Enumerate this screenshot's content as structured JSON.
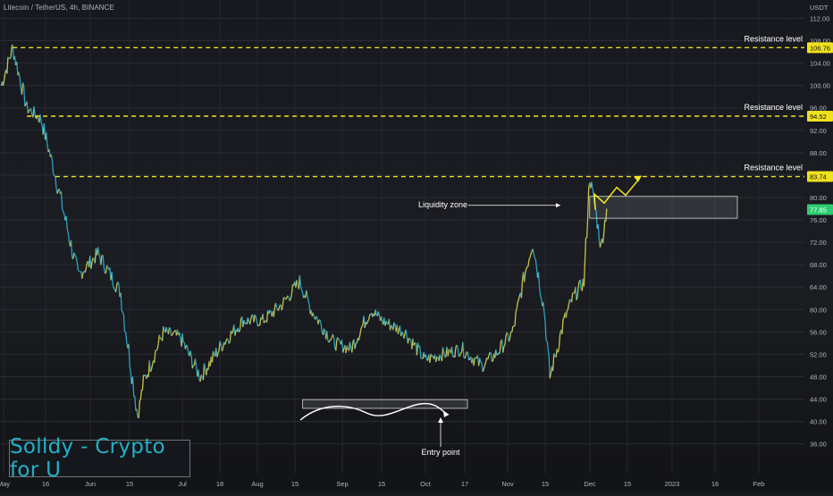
{
  "header": {
    "title": "Litecoin / TetherUS, 4h, BINANCE",
    "currency": "USDT"
  },
  "watermark": {
    "text": "Solldy - Crypto for U"
  },
  "colors": {
    "line_up": "#c8c24a",
    "line_down": "#2ba3bf",
    "resistance": "#f0e11e",
    "arrow": "#f5eb22",
    "annotation": "#ffffff"
  },
  "annotations": {
    "resistance_label": "Resistance level",
    "liquidity_label": "Liquidity zone",
    "entry_label": "Entry point"
  },
  "chart_data": {
    "type": "line",
    "title": "Litecoin / TetherUS, 4h, BINANCE",
    "ylabel": "USDT",
    "ylim": [
      35,
      113
    ],
    "x_tick_labels": [
      "May",
      "16",
      "Jun",
      "15",
      "Jul",
      "18",
      "Aug",
      "15",
      "Sep",
      "15",
      "Oct",
      "17",
      "Nov",
      "15",
      "Dec",
      "15",
      "2023",
      "16",
      "Feb"
    ],
    "y_tick_labels": [
      "112.00",
      "108.00",
      "104.00",
      "100.00",
      "96.00",
      "92.00",
      "88.00",
      "84.00",
      "80.00",
      "76.00",
      "72.00",
      "68.00",
      "64.00",
      "60.00",
      "56.00",
      "52.00",
      "48.00",
      "44.00",
      "40.00",
      "36.00"
    ],
    "price_labels": [
      {
        "value": "106.76",
        "color": "#f0e11e"
      },
      {
        "value": "94.52",
        "color": "#f0e11e"
      },
      {
        "value": "83.74",
        "color": "#f0e11e"
      },
      {
        "value": "77.85",
        "color": "#2ecc71"
      }
    ],
    "resistance_levels": [
      106.76,
      94.52,
      83.74
    ],
    "current_price": 77.85,
    "liquidity_zone": {
      "from": "Nov 24",
      "to": "Dec 30",
      "low": 76.3,
      "high": 80.2
    },
    "accumulation_box": {
      "from": "Aug 15",
      "to": "Oct 19",
      "low": 42.5,
      "high": 43.9
    },
    "series": [
      {
        "name": "LTCUSDT",
        "x": [
          "May 1",
          "May 5",
          "May 10",
          "May 15",
          "May 20",
          "May 28",
          "Jun 4",
          "Jun 12",
          "Jun 18",
          "Jun 20",
          "Jun 27",
          "Jul 3",
          "Jul 10",
          "Jul 18",
          "Jul 25",
          "Aug 1",
          "Aug 8",
          "Aug 14",
          "Aug 18",
          "Aug 26",
          "Sep 1",
          "Sep 8",
          "Sep 12",
          "Sep 20",
          "Sep 27",
          "Oct 3",
          "Oct 10",
          "Oct 17",
          "Oct 22",
          "Oct 28",
          "Nov 1",
          "Nov 4",
          "Nov 8",
          "Nov 10",
          "Nov 15",
          "Nov 18",
          "Nov 22",
          "Nov 24",
          "Nov 26",
          "Nov 28",
          "Nov 30"
        ],
        "y": [
          100,
          106.8,
          96,
          94,
          84,
          66,
          70,
          63,
          41,
          47,
          56,
          55,
          48,
          54,
          58,
          58,
          61,
          65,
          60,
          54,
          53,
          60,
          58,
          56,
          51,
          52,
          53,
          50,
          52,
          56,
          66,
          72,
          60,
          48,
          58,
          62,
          65,
          83.7,
          78,
          71,
          78
        ]
      }
    ]
  }
}
